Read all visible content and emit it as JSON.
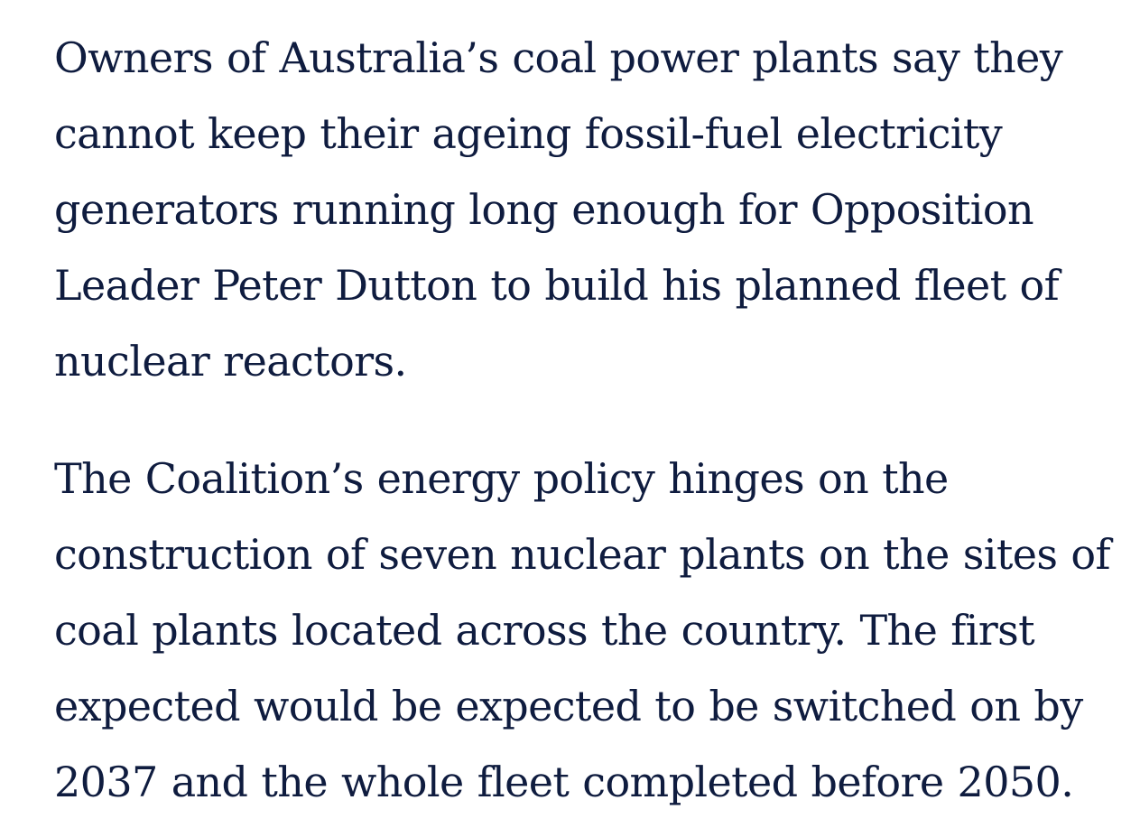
{
  "article": {
    "paragraphs": [
      "Owners of Australia’s coal power plants say they cannot keep their ageing fossil-fuel electricity generators running long enough for Opposition Leader Peter Dutton to build his planned fleet of nuclear reactors.",
      "The Coalition’s energy policy hinges on the construction of seven nuclear plants on the sites of coal plants located across the country. The first expected would be expected to be switched on by 2037 and the whole fleet completed before 2050."
    ]
  },
  "colors": {
    "text": "#0f1c3f",
    "background": "#ffffff"
  }
}
